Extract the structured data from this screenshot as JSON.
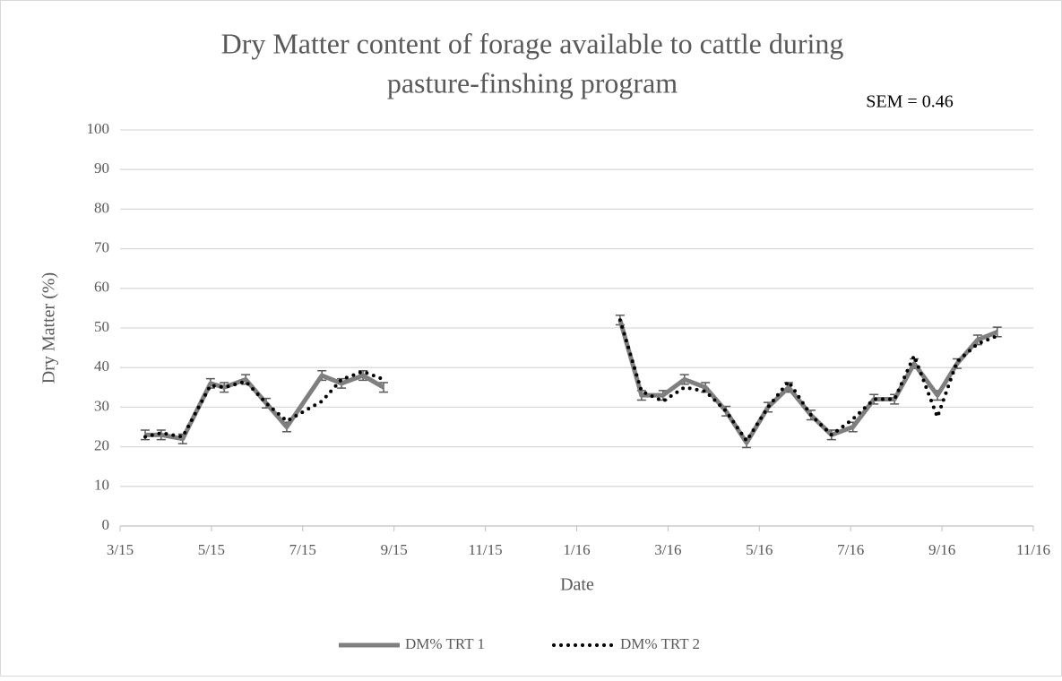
{
  "chart_data": {
    "type": "line",
    "title": [
      "Dry Matter content of forage available to cattle during",
      "pasture-finshing program"
    ],
    "annotation": "SEM = 0.46",
    "x_label": "Date",
    "y_label": "Dry Matter (%)",
    "x": [
      0.55,
      0.9,
      1.37,
      1.98,
      2.28,
      2.75,
      3.2,
      3.65,
      4.42,
      4.85,
      5.32,
      5.77,
      null,
      10.95,
      11.42,
      11.89,
      12.36,
      12.82,
      13.27,
      13.72,
      14.19,
      14.64,
      15.13,
      15.58,
      16.05,
      16.51,
      16.96,
      17.39,
      17.9,
      18.33,
      18.78,
      19.21
    ],
    "series": [
      {
        "name": "DM% TRT 1",
        "color": "#7f7f7f",
        "error": 1.2,
        "values": [
          23,
          23,
          22,
          36,
          35,
          37,
          31,
          25,
          38,
          36,
          38,
          35,
          null,
          52,
          33,
          33,
          37,
          35,
          29,
          21,
          30,
          35,
          28,
          23,
          25,
          32,
          32,
          41,
          33,
          41,
          47,
          49
        ]
      },
      {
        "name": "DM% TRT 2",
        "color": "#000000",
        "values": [
          22.5,
          23.5,
          22.5,
          35.5,
          35,
          36.5,
          31,
          26.5,
          31.5,
          37,
          39,
          37,
          null,
          52,
          34,
          31.5,
          35,
          34,
          29,
          21.5,
          30,
          36.5,
          28,
          23,
          27,
          32,
          32,
          43,
          27.5,
          41.5,
          46,
          48
        ]
      }
    ],
    "xlim": [
      0,
      20
    ],
    "xticks": [
      {
        "value": 0,
        "label": "3/15"
      },
      {
        "value": 2,
        "label": "5/15"
      },
      {
        "value": 4,
        "label": "7/15"
      },
      {
        "value": 6,
        "label": "9/15"
      },
      {
        "value": 8,
        "label": "11/15"
      },
      {
        "value": 10,
        "label": "1/16"
      },
      {
        "value": 12,
        "label": "3/16"
      },
      {
        "value": 14,
        "label": "5/16"
      },
      {
        "value": 16,
        "label": "7/16"
      },
      {
        "value": 18,
        "label": "9/16"
      },
      {
        "value": 20,
        "label": "11/16"
      }
    ],
    "ylim": [
      0,
      100
    ],
    "yticks": [
      0,
      10,
      20,
      30,
      40,
      50,
      60,
      70,
      80,
      90,
      100
    ],
    "grid": true,
    "legend": "bottom"
  }
}
